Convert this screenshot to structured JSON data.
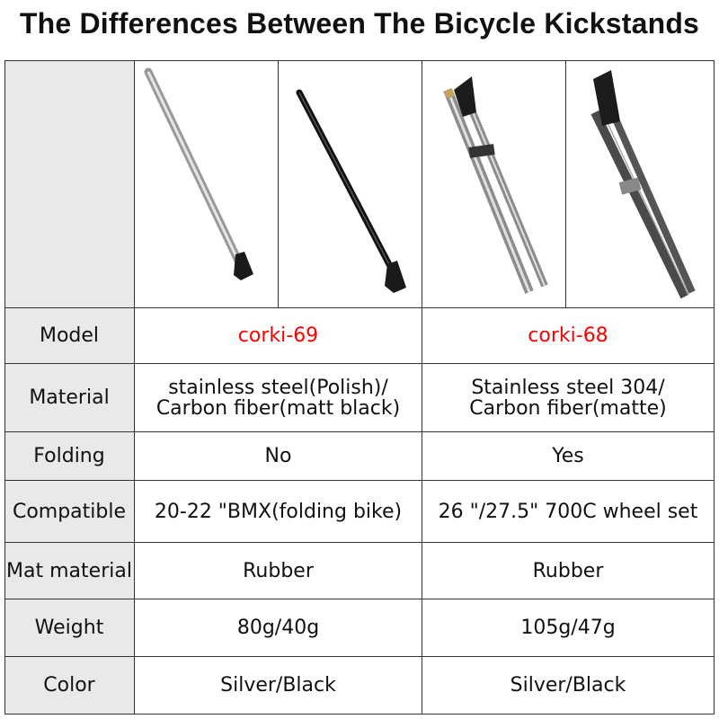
{
  "title": "The Differences Between The Bicycle Kickstands",
  "accent_color": "#ff0000",
  "label_bg_color": "#e9e9e9",
  "products": [
    {
      "image": "silver-straight-kickstand"
    },
    {
      "image": "black-straight-kickstand"
    },
    {
      "image": "silver-folding-kickstand"
    },
    {
      "image": "black-folding-kickstand"
    }
  ],
  "rows": [
    {
      "label": "Model",
      "a": "corki-69",
      "b": "corki-68"
    },
    {
      "label": "Material",
      "a": "stainless steel(Polish)/\nCarbon fiber(matt black)",
      "b": "Stainless steel 304/\nCarbon fiber(matte)"
    },
    {
      "label": "Folding",
      "a": "No",
      "b": "Yes"
    },
    {
      "label": "Compatible",
      "a": "20-22 \"BMX(folding bike)",
      "b": "26 \"/27.5\" 700C wheel set"
    },
    {
      "label": "Mat material",
      "a": "Rubber",
      "b": "Rubber"
    },
    {
      "label": "Weight",
      "a": "80g/40g",
      "b": "105g/47g"
    },
    {
      "label": "Color",
      "a": "Silver/Black",
      "b": "Silver/Black"
    }
  ]
}
